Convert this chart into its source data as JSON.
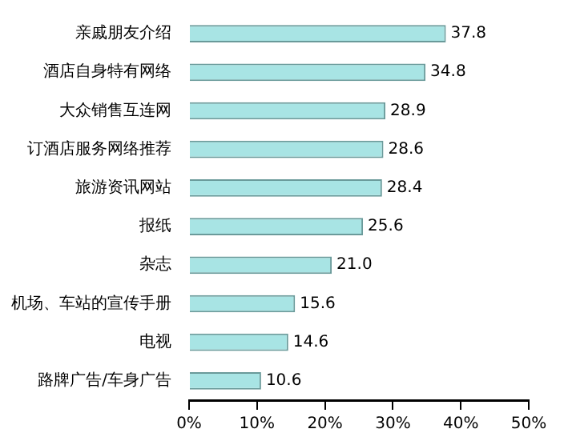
{
  "chart_data": {
    "type": "bar",
    "orientation": "horizontal",
    "categories": [
      "亲戚朋友介绍",
      "酒店自身特有网络",
      "大众销售互连网",
      "订酒店服务网络推荐",
      "旅游资讯网站",
      "报纸",
      "杂志",
      "机场、车站的宣传手册",
      "电视",
      "路牌广告/车身广告"
    ],
    "values": [
      37.8,
      34.8,
      28.9,
      28.6,
      28.4,
      25.6,
      21.0,
      15.6,
      14.6,
      10.6
    ],
    "value_labels": [
      "37.8",
      "34.8",
      "28.9",
      "28.6",
      "28.4",
      "25.6",
      "21.0",
      "15.6",
      "14.6",
      "10.6"
    ],
    "color": "#a8e4e4",
    "xlim": [
      0,
      50
    ],
    "xticks": [
      {
        "value": 0,
        "label": "0%"
      },
      {
        "value": 10,
        "label": "10%"
      },
      {
        "value": 20,
        "label": "20%"
      },
      {
        "value": 30,
        "label": "30%"
      },
      {
        "value": 40,
        "label": "40%"
      },
      {
        "value": 50,
        "label": "50%"
      }
    ],
    "grid": false,
    "legend": false
  }
}
